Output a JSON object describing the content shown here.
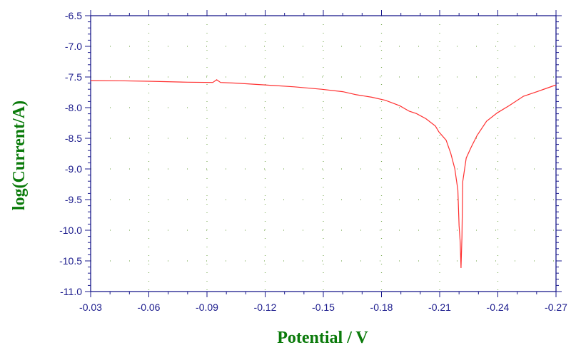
{
  "chart_data": {
    "type": "line",
    "title": "",
    "xlabel": "Potential / V",
    "ylabel": "log(Current/A)",
    "xlim": [
      -0.03,
      -0.27
    ],
    "ylim": [
      -11.0,
      -6.5
    ],
    "x_reversed": true,
    "xticks": [
      -0.03,
      -0.06,
      -0.09,
      -0.12,
      -0.15,
      -0.18,
      -0.21,
      -0.24,
      -0.27
    ],
    "xtick_labels": [
      "-0.03",
      "-0.06",
      "-0.09",
      "-0.12",
      "-0.15",
      "-0.18",
      "-0.21",
      "-0.24",
      "-0.27"
    ],
    "yticks": [
      -6.5,
      -7.0,
      -7.5,
      -8.0,
      -8.5,
      -9.0,
      -9.5,
      -10.0,
      -10.5,
      -11.0
    ],
    "ytick_labels": [
      "-6.5",
      "-7.0",
      "-7.5",
      "-8.0",
      "-8.5",
      "-9.0",
      "-9.5",
      "-10.0",
      "-10.5",
      "-11.0"
    ],
    "grid": "dotted",
    "colors": {
      "line": "#ff3030",
      "axis": "#1a1a8c",
      "labels": "#0a7a0a",
      "grid": "#7fae5a"
    },
    "series": [
      {
        "x": [
          -0.03,
          -0.045,
          -0.06,
          -0.08,
          -0.093,
          -0.095,
          -0.097,
          -0.105,
          -0.119,
          -0.135,
          -0.149,
          -0.16,
          -0.167,
          -0.175,
          -0.182,
          -0.1894,
          -0.1943,
          -0.198,
          -0.2029,
          -0.2078,
          -0.2096,
          -0.2133,
          -0.2157,
          -0.2178,
          -0.2194,
          -0.22,
          -0.2206,
          -0.221,
          -0.2215,
          -0.2219,
          -0.2237,
          -0.2262,
          -0.2293,
          -0.2342,
          -0.2397,
          -0.2458,
          -0.2532,
          -0.2605,
          -0.2691,
          -0.27
        ],
        "y": [
          -7.558,
          -7.562,
          -7.57,
          -7.585,
          -7.59,
          -7.545,
          -7.59,
          -7.6,
          -7.628,
          -7.66,
          -7.7,
          -7.74,
          -7.79,
          -7.83,
          -7.88,
          -7.969,
          -8.058,
          -8.097,
          -8.18,
          -8.3,
          -8.395,
          -8.53,
          -8.744,
          -8.996,
          -9.345,
          -9.927,
          -10.198,
          -10.616,
          -10.116,
          -9.209,
          -8.822,
          -8.648,
          -8.453,
          -8.221,
          -8.085,
          -7.969,
          -7.814,
          -7.736,
          -7.64,
          -7.63
        ]
      }
    ]
  }
}
